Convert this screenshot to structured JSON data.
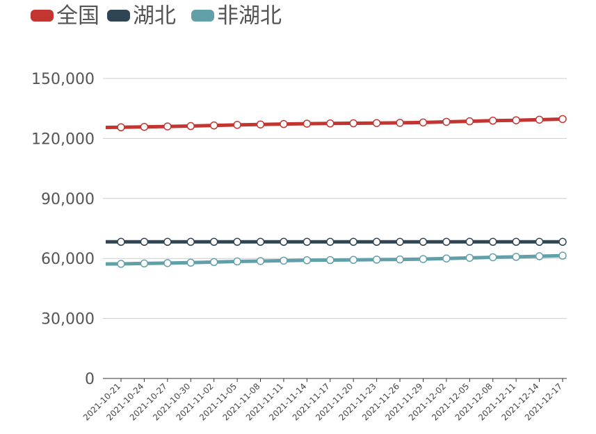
{
  "chart_data": {
    "type": "line",
    "title": "",
    "xlabel": "",
    "ylabel": "",
    "ylim": [
      0,
      150000
    ],
    "yticks": [
      0,
      30000,
      60000,
      90000,
      120000,
      150000
    ],
    "ytick_labels": [
      "0",
      "30,000",
      "60,000",
      "90,000",
      "120,000",
      "150,000"
    ],
    "grid": "horizontal",
    "legend": "top-left",
    "x": [
      "2021-10-21",
      "2021-10-24",
      "2021-10-27",
      "2021-10-30",
      "2021-11-02",
      "2021-11-05",
      "2021-11-08",
      "2021-11-11",
      "2021-11-14",
      "2021-11-17",
      "2021-11-20",
      "2021-11-23",
      "2021-11-26",
      "2021-11-29",
      "2021-12-02",
      "2021-12-05",
      "2021-12-08",
      "2021-12-11",
      "2021-12-14",
      "2021-12-17"
    ],
    "series": [
      {
        "name": "全国",
        "color": "#c23531",
        "values": [
          125600,
          125800,
          126000,
          126200,
          126500,
          126800,
          127000,
          127200,
          127400,
          127500,
          127600,
          127700,
          127800,
          128000,
          128300,
          128600,
          128900,
          129100,
          129400,
          129700
        ]
      },
      {
        "name": "湖北",
        "color": "#2f4554",
        "values": [
          68300,
          68300,
          68300,
          68300,
          68300,
          68300,
          68300,
          68300,
          68300,
          68300,
          68300,
          68300,
          68300,
          68300,
          68300,
          68300,
          68300,
          68300,
          68300,
          68300
        ]
      },
      {
        "name": "非湖北",
        "color": "#61a0a8",
        "values": [
          57300,
          57500,
          57700,
          57900,
          58200,
          58500,
          58700,
          58900,
          59100,
          59200,
          59300,
          59400,
          59500,
          59700,
          60000,
          60300,
          60600,
          60800,
          61100,
          61400
        ]
      }
    ]
  }
}
